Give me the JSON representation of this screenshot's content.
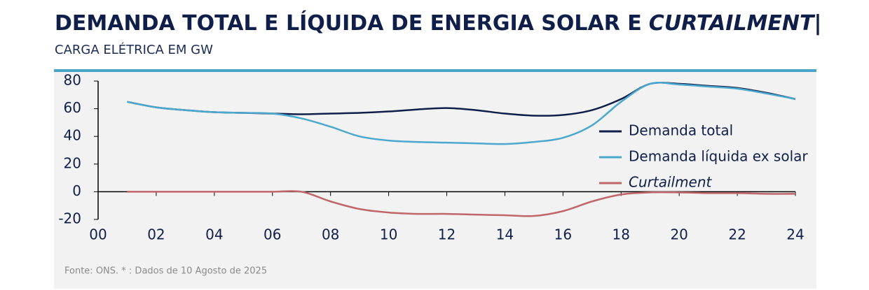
{
  "chart_data": {
    "type": "line",
    "title": "DEMANDA TOTAL E LÍQUIDA DE ENERGIA SOLAR E",
    "title_italic": "CURTAILMENT",
    "title_end": "|",
    "subtitle": "CARGA ELÉTRICA EM GW",
    "source": "Fonte: ONS. * : Dados de 10 Agosto de 2025",
    "x": [
      1,
      2,
      3,
      4,
      5,
      6,
      7,
      8,
      9,
      10,
      11,
      12,
      13,
      14,
      15,
      16,
      17,
      18,
      19,
      20,
      21,
      22,
      23,
      24
    ],
    "xlim": [
      0,
      24
    ],
    "xticks": [
      {
        "value": 0,
        "label": "00"
      },
      {
        "value": 2,
        "label": "02"
      },
      {
        "value": 4,
        "label": "04"
      },
      {
        "value": 6,
        "label": "06"
      },
      {
        "value": 8,
        "label": "08"
      },
      10,
      12,
      14,
      16,
      18,
      20,
      22,
      24
    ],
    "ylim": [
      -20,
      80
    ],
    "yticks": [
      -20,
      0,
      20,
      40,
      60,
      80
    ],
    "legend": "right",
    "series": [
      {
        "name": "Demanda total",
        "color": "#0f1f4a",
        "values": [
          65,
          61,
          59,
          57.5,
          57,
          56.5,
          56,
          56.5,
          57,
          58,
          59.5,
          60.5,
          59,
          56.5,
          55,
          55.5,
          59,
          67,
          78,
          78,
          76.5,
          75,
          71.5,
          67
        ]
      },
      {
        "name": "Demanda líquida ex solar",
        "color": "#4aa8cf",
        "values": [
          65,
          61,
          59,
          57.5,
          57,
          56.5,
          53,
          47,
          40,
          37,
          36,
          35.5,
          35,
          34.5,
          36,
          39,
          48,
          65,
          78,
          77.5,
          76,
          74.5,
          71,
          67
        ]
      },
      {
        "name": "Curtailment",
        "color": "#c0666a",
        "values": [
          0,
          0,
          0,
          0,
          0,
          0,
          0,
          -7,
          -12.5,
          -15,
          -16,
          -16,
          -16.5,
          -17,
          -17.5,
          -14,
          -7,
          -2,
          -0.5,
          -0.5,
          -1,
          -1,
          -1.5,
          -1.5
        ]
      }
    ]
  }
}
